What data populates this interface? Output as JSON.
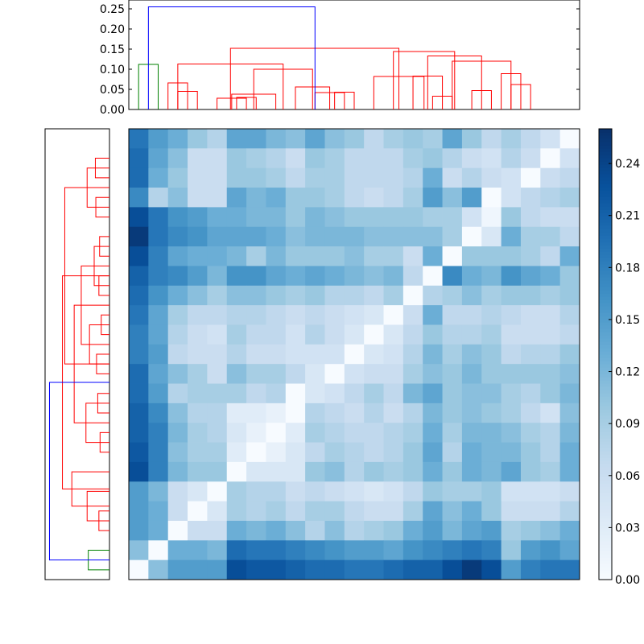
{
  "chart_data": [
    {
      "type": "dendrogram",
      "orientation": "top",
      "ylim": [
        0,
        0.26
      ],
      "y_ticks": [
        "0.00",
        "0.05",
        "0.10",
        "0.15",
        "0.20",
        "0.25"
      ],
      "colors": {
        "group_a": "#ff0000",
        "group_b": "#008000",
        "above_threshold": "#0000ff"
      },
      "links": [
        {
          "x1": 1,
          "x2": 2,
          "h": 0.112,
          "color": "#008000"
        },
        {
          "x1": 3,
          "x2": 4,
          "h": 0.045,
          "color": "#ff0000"
        },
        {
          "x1": 2.5,
          "x2": 3.5,
          "h": 0.066,
          "color": "#ff0000"
        },
        {
          "x1": 6,
          "x2": 7,
          "h": 0.03,
          "color": "#ff0000"
        },
        {
          "x1": 5,
          "x2": 6.5,
          "h": 0.028,
          "color": "#ff0000"
        },
        {
          "x1": 5.75,
          "x2": 8,
          "h": 0.038,
          "color": "#ff0000"
        },
        {
          "x1": 11,
          "x2": 12,
          "h": 0.043,
          "color": "#ff0000"
        },
        {
          "x1": 10,
          "x2": 11.5,
          "h": 0.042,
          "color": "#ff0000"
        },
        {
          "x1": 9,
          "x2": 10.75,
          "h": 0.056,
          "color": "#ff0000"
        },
        {
          "x1": 6.875,
          "x2": 9.875,
          "h": 0.1,
          "color": "#ff0000"
        },
        {
          "x1": 3,
          "x2": 8.375,
          "h": 0.113,
          "color": "#ff0000"
        },
        {
          "x1": 16,
          "x2": 17,
          "h": 0.033,
          "color": "#ff0000"
        },
        {
          "x1": 15,
          "x2": 16.5,
          "h": 0.083,
          "color": "#ff0000"
        },
        {
          "x1": 18,
          "x2": 19,
          "h": 0.047,
          "color": "#ff0000"
        },
        {
          "x1": 20,
          "x2": 21,
          "h": 0.062,
          "color": "#ff0000"
        },
        {
          "x1": 19.5,
          "x2": 20.5,
          "h": 0.089,
          "color": "#ff0000"
        },
        {
          "x1": 17,
          "x2": 20,
          "h": 0.12,
          "color": "#ff0000"
        },
        {
          "x1": 15.75,
          "x2": 18.5,
          "h": 0.133,
          "color": "#ff0000"
        },
        {
          "x1": 14,
          "x2": 17.125,
          "h": 0.144,
          "color": "#ff0000"
        },
        {
          "x1": 13,
          "x2": 15.5625,
          "h": 0.082,
          "color": "#ff0000"
        },
        {
          "x1": 5.6875,
          "x2": 14.28,
          "h": 0.152,
          "color": "#ff0000"
        },
        {
          "x1": 1.5,
          "x2": 10,
          "h": 0.255,
          "color": "#0000ff"
        }
      ]
    },
    {
      "type": "dendrogram",
      "orientation": "left",
      "xlim": [
        0,
        0.26
      ],
      "colors": {
        "group_a": "#ff0000",
        "group_b": "#008000",
        "above_threshold": "#0000ff"
      },
      "links": [
        {
          "x1": 1,
          "x2": 2,
          "h": 0.09,
          "color": "#008000"
        },
        {
          "x1": 3,
          "x2": 4,
          "h": 0.045,
          "color": "#ff0000"
        },
        {
          "x1": 5,
          "x2": 3.5,
          "h": 0.095,
          "color": "#ff0000"
        },
        {
          "x1": 6,
          "x2": 4.25,
          "h": 0.16,
          "color": "#ff0000"
        },
        {
          "x1": 7,
          "x2": 8,
          "h": 0.04,
          "color": "#ff0000"
        },
        {
          "x1": 9,
          "x2": 10,
          "h": 0.05,
          "color": "#ff0000"
        },
        {
          "x1": 7.5,
          "x2": 9.5,
          "h": 0.1,
          "color": "#ff0000"
        },
        {
          "x1": 11,
          "x2": 12,
          "h": 0.055,
          "color": "#ff0000"
        },
        {
          "x1": 13,
          "x2": 14,
          "h": 0.035,
          "color": "#ff0000"
        },
        {
          "x1": 11.5,
          "x2": 13.5,
          "h": 0.085,
          "color": "#ff0000"
        },
        {
          "x1": 15,
          "x2": 16,
          "h": 0.045,
          "color": "#ff0000"
        },
        {
          "x1": 17,
          "x2": 18,
          "h": 0.042,
          "color": "#ff0000"
        },
        {
          "x1": 15.5,
          "x2": 17.5,
          "h": 0.065,
          "color": "#ff0000"
        },
        {
          "x1": 12.5,
          "x2": 16.5,
          "h": 0.12,
          "color": "#ff0000"
        },
        {
          "x1": 8.5,
          "x2": 14.5,
          "h": 0.15,
          "color": "#ff0000"
        },
        {
          "x1": 19,
          "x2": 20,
          "h": 0.058,
          "color": "#ff0000"
        },
        {
          "x1": 21,
          "x2": 22,
          "h": 0.06,
          "color": "#ff0000"
        },
        {
          "x1": 19.5,
          "x2": 21.5,
          "h": 0.095,
          "color": "#ff0000"
        },
        {
          "x1": 11.5,
          "x2": 20.5,
          "h": 0.19,
          "color": "#ff0000"
        },
        {
          "x1": 5.125,
          "x2": 16,
          "h": 0.2,
          "color": "#ff0000"
        },
        {
          "x1": 1.5,
          "x2": 10.56,
          "h": 0.255,
          "color": "#0000ff"
        }
      ]
    },
    {
      "type": "heatmap",
      "rows": 23,
      "cols": 23,
      "colormap": "Blues",
      "vmin": 0,
      "vmax": 0.26,
      "colorbar_ticks": [
        "0.00",
        "0.03",
        "0.06",
        "0.09",
        "0.12",
        "0.15",
        "0.18",
        "0.21",
        "0.24"
      ],
      "values": [
        [
          0.19,
          0.15,
          0.13,
          0.1,
          0.08,
          0.14,
          0.14,
          0.12,
          0.11,
          0.14,
          0.11,
          0.1,
          0.07,
          0.09,
          0.1,
          0.09,
          0.14,
          0.1,
          0.07,
          0.09,
          0.07,
          0.05,
          0.0
        ],
        [
          0.2,
          0.14,
          0.11,
          0.06,
          0.06,
          0.1,
          0.09,
          0.08,
          0.06,
          0.1,
          0.09,
          0.07,
          0.07,
          0.07,
          0.09,
          0.1,
          0.08,
          0.06,
          0.05,
          0.08,
          0.06,
          0.0,
          0.05
        ],
        [
          0.2,
          0.13,
          0.1,
          0.06,
          0.06,
          0.1,
          0.1,
          0.09,
          0.07,
          0.09,
          0.09,
          0.07,
          0.07,
          0.07,
          0.08,
          0.13,
          0.06,
          0.08,
          0.06,
          0.05,
          0.0,
          0.06,
          0.07
        ],
        [
          0.17,
          0.08,
          0.11,
          0.06,
          0.06,
          0.14,
          0.12,
          0.13,
          0.1,
          0.1,
          0.09,
          0.07,
          0.06,
          0.07,
          0.09,
          0.15,
          0.11,
          0.15,
          0.0,
          0.05,
          0.07,
          0.08,
          0.09
        ],
        [
          0.23,
          0.19,
          0.16,
          0.15,
          0.13,
          0.13,
          0.12,
          0.12,
          0.1,
          0.12,
          0.11,
          0.1,
          0.1,
          0.1,
          0.1,
          0.09,
          0.09,
          0.05,
          0.01,
          0.1,
          0.07,
          0.06,
          0.06
        ],
        [
          0.25,
          0.19,
          0.17,
          0.16,
          0.14,
          0.14,
          0.14,
          0.13,
          0.11,
          0.12,
          0.12,
          0.12,
          0.11,
          0.11,
          0.11,
          0.11,
          0.09,
          0.0,
          0.04,
          0.13,
          0.09,
          0.09,
          0.07
        ],
        [
          0.23,
          0.18,
          0.14,
          0.13,
          0.13,
          0.12,
          0.09,
          0.12,
          0.1,
          0.1,
          0.1,
          0.11,
          0.09,
          0.09,
          0.06,
          0.13,
          0.0,
          0.1,
          0.1,
          0.1,
          0.09,
          0.07,
          0.13
        ],
        [
          0.21,
          0.18,
          0.17,
          0.15,
          0.12,
          0.16,
          0.16,
          0.14,
          0.13,
          0.14,
          0.13,
          0.12,
          0.11,
          0.12,
          0.07,
          0.0,
          0.17,
          0.13,
          0.12,
          0.16,
          0.14,
          0.13,
          0.1
        ],
        [
          0.2,
          0.16,
          0.13,
          0.11,
          0.09,
          0.11,
          0.11,
          0.1,
          0.09,
          0.1,
          0.08,
          0.08,
          0.07,
          0.09,
          0.0,
          0.08,
          0.09,
          0.11,
          0.09,
          0.1,
          0.1,
          0.09,
          0.1
        ],
        [
          0.19,
          0.14,
          0.09,
          0.07,
          0.07,
          0.08,
          0.08,
          0.07,
          0.06,
          0.07,
          0.06,
          0.05,
          0.04,
          0.0,
          0.06,
          0.13,
          0.07,
          0.07,
          0.08,
          0.07,
          0.06,
          0.06,
          0.08
        ],
        [
          0.18,
          0.14,
          0.08,
          0.06,
          0.05,
          0.09,
          0.07,
          0.07,
          0.05,
          0.08,
          0.06,
          0.04,
          0.0,
          0.04,
          0.07,
          0.1,
          0.08,
          0.08,
          0.09,
          0.06,
          0.06,
          0.06,
          0.07
        ],
        [
          0.18,
          0.15,
          0.07,
          0.06,
          0.06,
          0.08,
          0.06,
          0.06,
          0.05,
          0.05,
          0.05,
          0.0,
          0.04,
          0.05,
          0.08,
          0.12,
          0.09,
          0.11,
          0.1,
          0.07,
          0.08,
          0.08,
          0.1
        ],
        [
          0.2,
          0.14,
          0.11,
          0.09,
          0.06,
          0.11,
          0.09,
          0.09,
          0.07,
          0.04,
          0.0,
          0.05,
          0.06,
          0.06,
          0.09,
          0.11,
          0.1,
          0.12,
          0.1,
          0.1,
          0.1,
          0.1,
          0.11
        ],
        [
          0.2,
          0.15,
          0.08,
          0.09,
          0.09,
          0.09,
          0.07,
          0.08,
          0.0,
          0.04,
          0.05,
          0.07,
          0.09,
          0.07,
          0.12,
          0.14,
          0.1,
          0.11,
          0.11,
          0.09,
          0.08,
          0.1,
          0.12
        ],
        [
          0.21,
          0.17,
          0.11,
          0.08,
          0.08,
          0.03,
          0.03,
          0.02,
          0.0,
          0.08,
          0.07,
          0.06,
          0.08,
          0.06,
          0.08,
          0.12,
          0.1,
          0.11,
          0.1,
          0.09,
          0.07,
          0.05,
          0.11
        ],
        [
          0.21,
          0.18,
          0.12,
          0.09,
          0.08,
          0.04,
          0.02,
          0.0,
          0.03,
          0.09,
          0.08,
          0.07,
          0.07,
          0.08,
          0.09,
          0.13,
          0.09,
          0.12,
          0.12,
          0.11,
          0.09,
          0.08,
          0.12
        ],
        [
          0.22,
          0.18,
          0.11,
          0.09,
          0.09,
          0.03,
          0.0,
          0.02,
          0.04,
          0.07,
          0.09,
          0.08,
          0.07,
          0.08,
          0.1,
          0.14,
          0.08,
          0.13,
          0.12,
          0.12,
          0.1,
          0.08,
          0.13
        ],
        [
          0.23,
          0.18,
          0.12,
          0.1,
          0.1,
          0.0,
          0.04,
          0.04,
          0.04,
          0.1,
          0.11,
          0.08,
          0.1,
          0.09,
          0.1,
          0.13,
          0.1,
          0.13,
          0.12,
          0.14,
          0.1,
          0.09,
          0.13
        ],
        [
          0.15,
          0.12,
          0.06,
          0.04,
          0.0,
          0.09,
          0.08,
          0.08,
          0.06,
          0.07,
          0.06,
          0.05,
          0.04,
          0.05,
          0.07,
          0.1,
          0.09,
          0.09,
          0.1,
          0.05,
          0.05,
          0.05,
          0.06
        ],
        [
          0.15,
          0.13,
          0.06,
          0.0,
          0.04,
          0.09,
          0.08,
          0.09,
          0.07,
          0.09,
          0.09,
          0.07,
          0.06,
          0.06,
          0.09,
          0.14,
          0.11,
          0.13,
          0.1,
          0.06,
          0.06,
          0.06,
          0.08
        ],
        [
          0.15,
          0.13,
          0.0,
          0.06,
          0.06,
          0.13,
          0.12,
          0.13,
          0.11,
          0.08,
          0.11,
          0.08,
          0.09,
          0.1,
          0.13,
          0.15,
          0.12,
          0.14,
          0.15,
          0.09,
          0.1,
          0.11,
          0.13
        ],
        [
          0.11,
          0.0,
          0.13,
          0.13,
          0.12,
          0.2,
          0.19,
          0.19,
          0.18,
          0.17,
          0.16,
          0.15,
          0.15,
          0.14,
          0.16,
          0.17,
          0.18,
          0.19,
          0.18,
          0.1,
          0.15,
          0.16,
          0.14
        ],
        [
          0.0,
          0.11,
          0.15,
          0.15,
          0.15,
          0.23,
          0.22,
          0.22,
          0.21,
          0.2,
          0.2,
          0.19,
          0.19,
          0.2,
          0.21,
          0.21,
          0.23,
          0.25,
          0.23,
          0.15,
          0.18,
          0.19,
          0.19
        ]
      ]
    }
  ]
}
